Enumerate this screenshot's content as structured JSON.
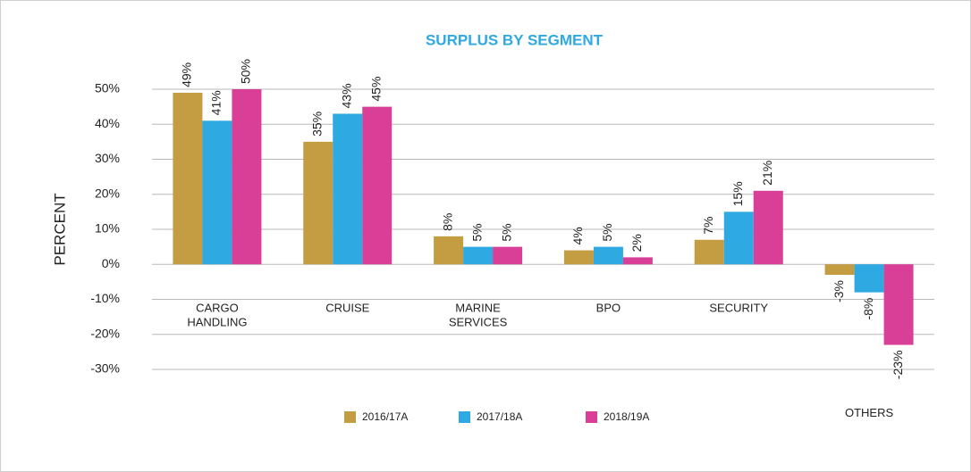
{
  "chart_data": {
    "type": "bar",
    "title": "SURPLUS BY SEGMENT",
    "y_label": "PERCENT",
    "categories": [
      "CARGO HANDLING",
      "CRUISE",
      "MARINE SERVICES",
      "BPO",
      "SECURITY",
      "OTHERS"
    ],
    "series": [
      {
        "name": "2016/17A",
        "color": "#c49c42",
        "values": [
          49,
          35,
          8,
          4,
          7,
          -3
        ],
        "value_labels": [
          "49%",
          "35%",
          "8%",
          "4%",
          "7%",
          "-3%"
        ]
      },
      {
        "name": "2017/18A",
        "color": "#2fa9e1",
        "values": [
          41,
          43,
          5,
          5,
          15,
          -8
        ],
        "value_labels": [
          "41%",
          "43%",
          "5%",
          "5%",
          "15%",
          "-8%"
        ]
      },
      {
        "name": "2018/19A",
        "color": "#d93f97",
        "values": [
          50,
          45,
          5,
          2,
          21,
          -23
        ],
        "value_labels": [
          "50%",
          "45%",
          "5%",
          "2%",
          "21%",
          "-23%"
        ]
      }
    ],
    "ylim": [
      -30,
      50
    ],
    "yticks": [
      {
        "value": -30,
        "label": "-30%"
      },
      {
        "value": -20,
        "label": "-20%"
      },
      {
        "value": -10,
        "label": "-10%"
      },
      {
        "value": 0,
        "label": "0%"
      },
      {
        "value": 10,
        "label": "10%"
      },
      {
        "value": 20,
        "label": "20%"
      },
      {
        "value": 30,
        "label": "30%"
      },
      {
        "value": 40,
        "label": "40%"
      },
      {
        "value": 50,
        "label": "50%"
      }
    ],
    "grid": true,
    "legend": "bottom"
  }
}
